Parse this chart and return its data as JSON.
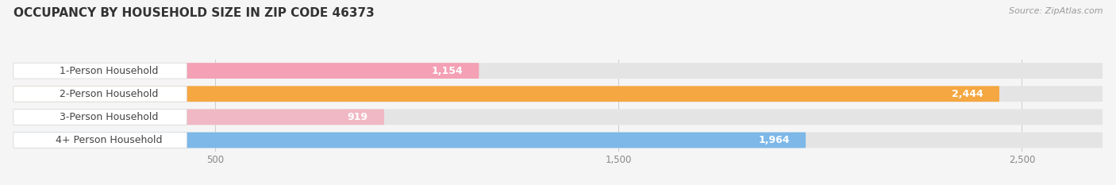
{
  "title": "OCCUPANCY BY HOUSEHOLD SIZE IN ZIP CODE 46373",
  "source": "Source: ZipAtlas.com",
  "categories": [
    "1-Person Household",
    "2-Person Household",
    "3-Person Household",
    "4+ Person Household"
  ],
  "values": [
    1154,
    2444,
    919,
    1964
  ],
  "bar_colors": [
    "#f4a0b5",
    "#f5a742",
    "#f0b8c4",
    "#7db8e8"
  ],
  "background_color": "#f5f5f5",
  "bar_bg_color": "#e4e4e4",
  "xlim": [
    0,
    2700
  ],
  "xlim_display": [
    0,
    2700
  ],
  "xticks": [
    500,
    1500,
    2500
  ],
  "bar_height": 0.68,
  "value_fontsize": 9,
  "label_fontsize": 9,
  "title_fontsize": 11,
  "source_fontsize": 8
}
